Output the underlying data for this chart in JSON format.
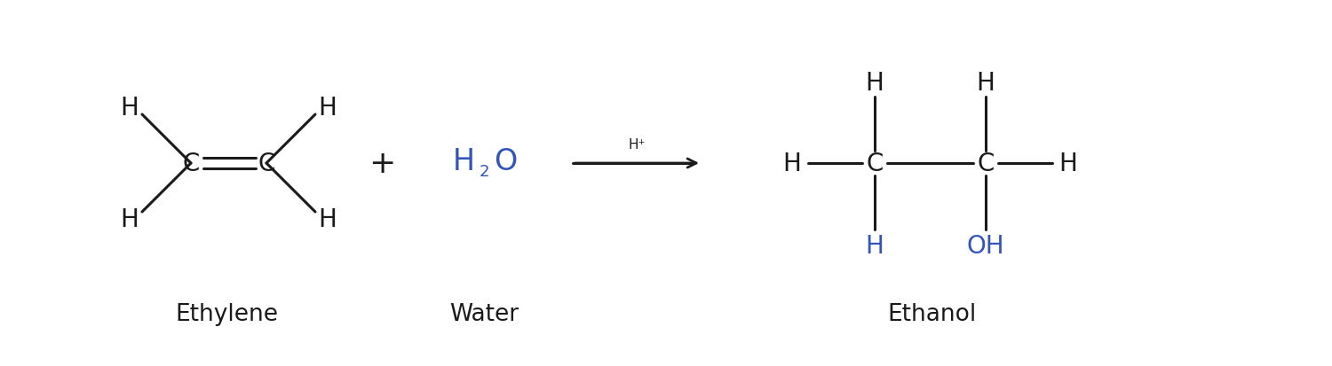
{
  "bg_color": "#ffffff",
  "black": "#1a1a1a",
  "blue": "#3355bb",
  "font_size_atom": 20,
  "font_size_label": 19,
  "font_size_sub": 13,
  "font_size_catalyst": 11,
  "ethylene_label": "Ethylene",
  "water_label": "Water",
  "ethanol_label": "Ethanol"
}
